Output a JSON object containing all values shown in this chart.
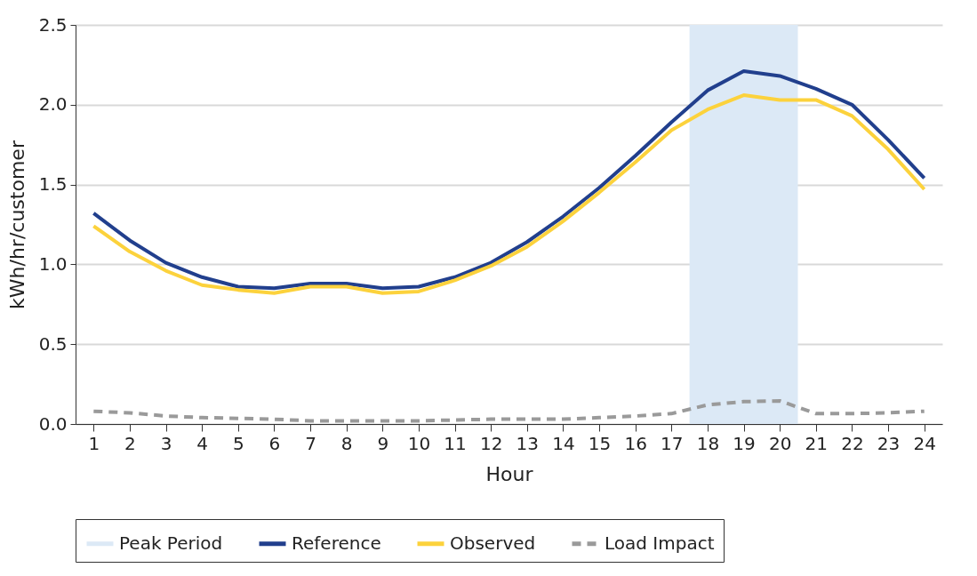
{
  "chart_data": {
    "type": "line",
    "xlabel": "Hour",
    "ylabel": "kWh/hr/customer",
    "x": [
      1,
      2,
      3,
      4,
      5,
      6,
      7,
      8,
      9,
      10,
      11,
      12,
      13,
      14,
      15,
      16,
      17,
      18,
      19,
      20,
      21,
      22,
      23,
      24
    ],
    "xlim": [
      0.5,
      24.5
    ],
    "xticks": [
      1,
      2,
      3,
      4,
      5,
      6,
      7,
      8,
      9,
      10,
      11,
      12,
      13,
      14,
      15,
      16,
      17,
      18,
      19,
      20,
      21,
      22,
      23,
      24
    ],
    "ylim": [
      0,
      2.5
    ],
    "yticks": [
      {
        "value": 0,
        "label": "0.0"
      },
      0.5,
      {
        "value": 1,
        "label": "1.0"
      },
      1.5,
      {
        "value": 2,
        "label": "2.0"
      },
      2.5
    ],
    "grid": "y",
    "legend": "bottom",
    "bands": [
      {
        "axis": "x",
        "from": 17.5,
        "to": 20.5,
        "label": "Peak Period",
        "color": "#dce9f6"
      }
    ],
    "series": [
      {
        "name": "Reference",
        "color": "#213f8d",
        "line_style": "solid",
        "values": [
          1.32,
          1.15,
          1.01,
          0.92,
          0.86,
          0.85,
          0.88,
          0.88,
          0.85,
          0.86,
          0.92,
          1.01,
          1.14,
          1.3,
          1.48,
          1.68,
          1.89,
          2.09,
          2.21,
          2.18,
          2.1,
          2.0,
          1.78,
          1.54
        ]
      },
      {
        "name": "Observed",
        "color": "#fcd23c",
        "line_style": "solid",
        "values": [
          1.24,
          1.08,
          0.96,
          0.87,
          0.84,
          0.82,
          0.86,
          0.86,
          0.82,
          0.83,
          0.9,
          0.99,
          1.11,
          1.27,
          1.45,
          1.64,
          1.84,
          1.97,
          2.06,
          2.03,
          2.03,
          1.93,
          1.72,
          1.47
        ]
      },
      {
        "name": "Load Impact",
        "color": "#9a9a9a",
        "line_style": "dashed",
        "values": [
          0.08,
          0.07,
          0.05,
          0.04,
          0.035,
          0.03,
          0.02,
          0.02,
          0.02,
          0.02,
          0.025,
          0.03,
          0.03,
          0.03,
          0.04,
          0.05,
          0.065,
          0.12,
          0.14,
          0.145,
          0.065,
          0.065,
          0.07,
          0.08
        ]
      }
    ]
  }
}
